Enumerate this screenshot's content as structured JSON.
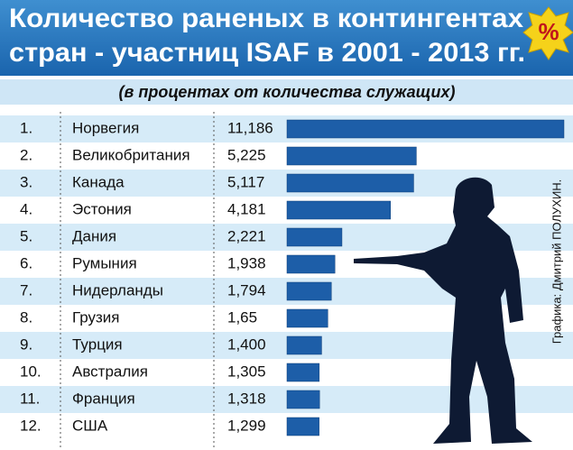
{
  "chart_data": {
    "type": "bar",
    "orientation": "horizontal",
    "title": [
      "Количество раненых в контингентах",
      "стран - участниц ISAF в 2001 - 2013 гг."
    ],
    "badge": "%",
    "subtitle": "(в процентах от количества служащих)",
    "credit": "Графика: Дмитрий ПОЛУХИН.",
    "ranks": [
      "1.",
      "2.",
      "3.",
      "4.",
      "5.",
      "6.",
      "7.",
      "8.",
      "9.",
      "10.",
      "11.",
      "12."
    ],
    "categories": [
      "Норвегия",
      "Великобритания",
      "Канада",
      "Эстония",
      "Дания",
      "Румыния",
      "Нидерланды",
      "Грузия",
      "Турция",
      "Австралия",
      "Франция",
      "США"
    ],
    "values": [
      11.186,
      5.225,
      5.117,
      4.181,
      2.221,
      1.938,
      1.794,
      1.65,
      1.4,
      1.305,
      1.318,
      1.299
    ],
    "value_labels": [
      "11,186",
      "5,225",
      "5,117",
      "4,181",
      "2,221",
      "1,938",
      "1,794",
      "1,65",
      "1,400",
      "1,305",
      "1,318",
      "1,299"
    ],
    "color": "#1d5ea8"
  }
}
